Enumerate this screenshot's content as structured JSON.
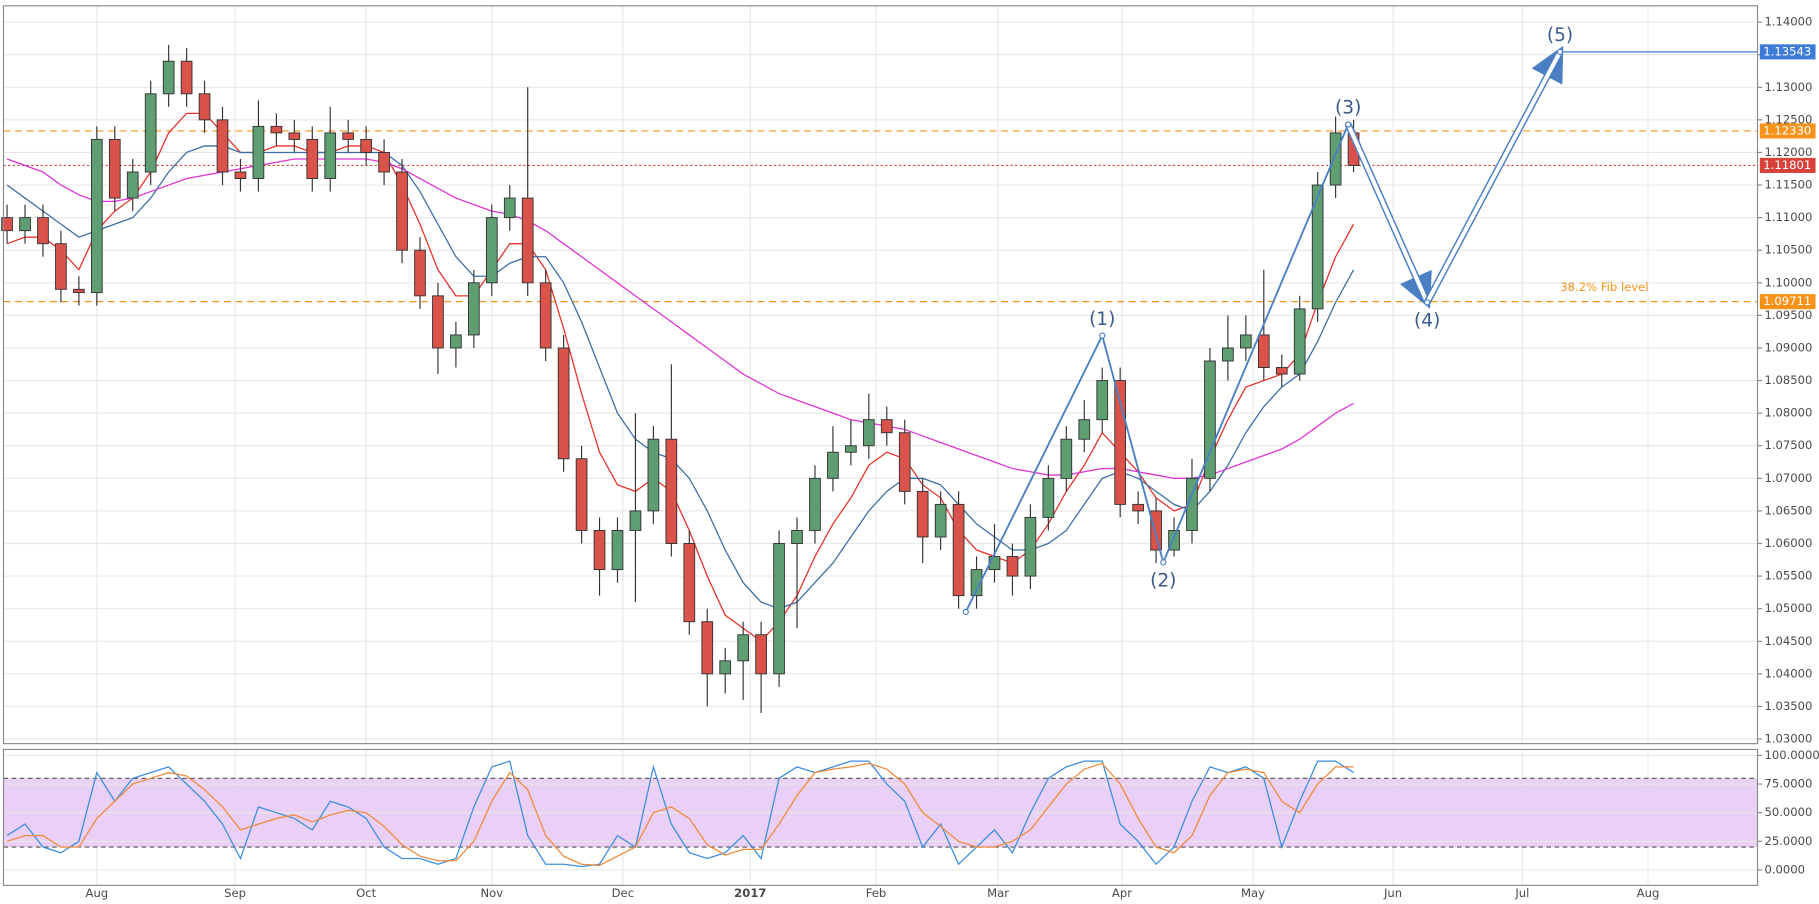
{
  "chart_data": [
    {
      "type": "candlestick",
      "open": [
        1.11,
        1.108,
        1.11,
        1.106,
        1.099,
        1.0985,
        1.122,
        1.113,
        1.117,
        1.129,
        1.134,
        1.129,
        1.125,
        1.117,
        1.116,
        1.124,
        1.123,
        1.122,
        1.116,
        1.123,
        1.122,
        1.12,
        1.117,
        1.105,
        1.098,
        1.09,
        1.092,
        1.1,
        1.11,
        1.113,
        1.1,
        1.09,
        1.073,
        1.062,
        1.056,
        1.062,
        1.065,
        1.076,
        1.06,
        1.048,
        1.04,
        1.042,
        1.046,
        1.04,
        1.06,
        1.062,
        1.07,
        1.074,
        1.075,
        1.079,
        1.077,
        1.068,
        1.061,
        1.066,
        1.052,
        1.056,
        1.058,
        1.055,
        1.064,
        1.07,
        1.076,
        1.079,
        1.085,
        1.066,
        1.065,
        1.059,
        1.062,
        1.07,
        1.088,
        1.09,
        1.092,
        1.087,
        1.086,
        1.096,
        1.115,
        1.123
      ],
      "high": [
        1.112,
        1.112,
        1.112,
        1.108,
        1.101,
        1.124,
        1.124,
        1.119,
        1.131,
        1.1365,
        1.136,
        1.131,
        1.127,
        1.119,
        1.128,
        1.126,
        1.125,
        1.124,
        1.127,
        1.125,
        1.124,
        1.122,
        1.119,
        1.107,
        1.1,
        1.094,
        1.102,
        1.112,
        1.115,
        1.13,
        1.102,
        1.092,
        1.075,
        1.064,
        1.064,
        1.08,
        1.078,
        1.0875,
        1.062,
        1.05,
        1.044,
        1.048,
        1.048,
        1.062,
        1.064,
        1.072,
        1.078,
        1.079,
        1.083,
        1.081,
        1.079,
        1.07,
        1.068,
        1.068,
        1.058,
        1.063,
        1.06,
        1.066,
        1.072,
        1.078,
        1.082,
        1.087,
        1.087,
        1.068,
        1.067,
        1.064,
        1.073,
        1.09,
        1.095,
        1.095,
        1.102,
        1.089,
        1.098,
        1.117,
        1.1255,
        1.125
      ],
      "low": [
        1.106,
        1.106,
        1.104,
        1.097,
        1.0965,
        1.0965,
        1.111,
        1.111,
        1.115,
        1.127,
        1.127,
        1.123,
        1.115,
        1.114,
        1.114,
        1.121,
        1.12,
        1.114,
        1.114,
        1.12,
        1.118,
        1.115,
        1.103,
        1.096,
        1.086,
        1.087,
        1.09,
        1.098,
        1.108,
        1.098,
        1.088,
        1.071,
        1.06,
        1.052,
        1.054,
        1.051,
        1.063,
        1.058,
        1.046,
        1.035,
        1.037,
        1.036,
        1.034,
        1.038,
        1.047,
        1.06,
        1.068,
        1.072,
        1.073,
        1.075,
        1.066,
        1.057,
        1.059,
        1.05,
        1.05,
        1.054,
        1.052,
        1.053,
        1.062,
        1.068,
        1.074,
        1.077,
        1.064,
        1.063,
        1.057,
        1.058,
        1.06,
        1.068,
        1.085,
        1.088,
        1.085,
        1.084,
        1.085,
        1.094,
        1.113,
        1.117
      ],
      "close": [
        1.108,
        1.11,
        1.106,
        1.099,
        1.0985,
        1.122,
        1.113,
        1.117,
        1.129,
        1.134,
        1.129,
        1.125,
        1.117,
        1.116,
        1.124,
        1.123,
        1.122,
        1.116,
        1.123,
        1.122,
        1.12,
        1.117,
        1.105,
        1.098,
        1.09,
        1.092,
        1.1,
        1.11,
        1.113,
        1.1,
        1.09,
        1.073,
        1.062,
        1.056,
        1.062,
        1.065,
        1.076,
        1.06,
        1.048,
        1.04,
        1.042,
        1.046,
        1.04,
        1.06,
        1.062,
        1.07,
        1.074,
        1.075,
        1.079,
        1.077,
        1.068,
        1.061,
        1.066,
        1.052,
        1.056,
        1.058,
        1.055,
        1.064,
        1.07,
        1.076,
        1.079,
        1.085,
        1.066,
        1.065,
        1.059,
        1.062,
        1.07,
        1.088,
        1.09,
        1.092,
        1.087,
        1.086,
        1.096,
        1.115,
        1.123,
        1.118
      ],
      "up_color": "#5e9e72",
      "down_color": "#d9534a",
      "lines": [
        {
          "color": "#e8312a",
          "values": [
            1.106,
            1.107,
            1.107,
            1.105,
            1.102,
            1.108,
            1.111,
            1.113,
            1.117,
            1.123,
            1.126,
            1.126,
            1.123,
            1.12,
            1.12,
            1.121,
            1.121,
            1.12,
            1.12,
            1.121,
            1.121,
            1.12,
            1.115,
            1.109,
            1.102,
            1.098,
            1.098,
            1.102,
            1.106,
            1.106,
            1.102,
            1.093,
            1.083,
            1.074,
            1.069,
            1.068,
            1.07,
            1.068,
            1.062,
            1.055,
            1.049,
            1.047,
            1.045,
            1.048,
            1.052,
            1.058,
            1.063,
            1.067,
            1.072,
            1.074,
            1.073,
            1.069,
            1.067,
            1.062,
            1.059,
            1.058,
            1.057,
            1.059,
            1.063,
            1.068,
            1.072,
            1.077,
            1.074,
            1.071,
            1.067,
            1.065,
            1.066,
            1.073,
            1.079,
            1.084,
            1.085,
            1.086,
            1.089,
            1.097,
            1.104,
            1.109
          ]
        },
        {
          "color": "#3b6ea5",
          "values": [
            1.115,
            1.113,
            1.111,
            1.109,
            1.107,
            1.108,
            1.109,
            1.11,
            1.113,
            1.117,
            1.12,
            1.121,
            1.121,
            1.12,
            1.12,
            1.12,
            1.12,
            1.12,
            1.12,
            1.12,
            1.12,
            1.12,
            1.118,
            1.114,
            1.109,
            1.104,
            1.101,
            1.101,
            1.103,
            1.104,
            1.104,
            1.1,
            1.094,
            1.087,
            1.08,
            1.076,
            1.074,
            1.073,
            1.07,
            1.065,
            1.059,
            1.054,
            1.051,
            1.05,
            1.051,
            1.054,
            1.057,
            1.061,
            1.065,
            1.068,
            1.07,
            1.07,
            1.069,
            1.066,
            1.063,
            1.061,
            1.059,
            1.059,
            1.06,
            1.062,
            1.066,
            1.07,
            1.071,
            1.07,
            1.068,
            1.066,
            1.065,
            1.068,
            1.072,
            1.077,
            1.081,
            1.084,
            1.086,
            1.091,
            1.097,
            1.102
          ]
        },
        {
          "color": "#e033d6",
          "values": [
            1.119,
            1.118,
            1.117,
            1.115,
            1.1135,
            1.1125,
            1.1125,
            1.113,
            1.114,
            1.115,
            1.116,
            1.1165,
            1.117,
            1.1175,
            1.118,
            1.1185,
            1.119,
            1.119,
            1.119,
            1.119,
            1.119,
            1.1185,
            1.1175,
            1.116,
            1.1145,
            1.113,
            1.112,
            1.111,
            1.1105,
            1.1095,
            1.108,
            1.106,
            1.104,
            1.102,
            1.1,
            1.098,
            1.096,
            1.094,
            1.092,
            1.09,
            1.088,
            1.086,
            1.0845,
            1.083,
            1.082,
            1.081,
            1.08,
            1.079,
            1.0785,
            1.078,
            1.0775,
            1.0765,
            1.0755,
            1.0745,
            1.0735,
            1.0725,
            1.0715,
            1.071,
            1.0705,
            1.0705,
            1.071,
            1.0715,
            1.0715,
            1.071,
            1.0705,
            1.07,
            1.07,
            1.0705,
            1.0715,
            1.0725,
            1.0735,
            1.0745,
            1.076,
            1.078,
            1.08,
            1.0815
          ]
        }
      ],
      "wave": {
        "color": "#4a7fc4",
        "x": [
          53.4,
          61.0,
          64.4,
          74.7,
          79.1,
          86.5
        ],
        "y": [
          1.0495,
          1.0919,
          1.0571,
          1.1243,
          1.097,
          1.13543
        ],
        "labels": [
          null,
          "(1)",
          "(2)",
          "(3)",
          "(4)",
          "(5)"
        ]
      },
      "hlines": [
        {
          "value": 1.13543,
          "label": "1.13543",
          "color": "#3d7bd9",
          "style": "solid"
        },
        {
          "value": 1.1233,
          "label": "1.12330",
          "color": "#f7931a",
          "style": "dashed"
        },
        {
          "value": 1.11801,
          "label": "1.11801",
          "color": "#d7433a",
          "style": "dotted"
        },
        {
          "value": 1.09711,
          "label": "1.09711",
          "color": "#f7931a",
          "style": "dashed",
          "note": "38.2% Fib level"
        }
      ],
      "xlim": [
        -0.2,
        97.5
      ],
      "xticks": [
        {
          "value": 5.0,
          "label": "Aug"
        },
        {
          "value": 12.7,
          "label": "Sep"
        },
        {
          "value": 20.0,
          "label": "Oct"
        },
        {
          "value": 27.0,
          "label": "Nov"
        },
        {
          "value": 34.3,
          "label": "Dec"
        },
        {
          "value": 41.4,
          "label": "2017"
        },
        {
          "value": 48.4,
          "label": "Feb"
        },
        {
          "value": 55.2,
          "label": "Mar"
        },
        {
          "value": 62.1,
          "label": "Apr"
        },
        {
          "value": 69.4,
          "label": "May"
        },
        {
          "value": 77.2,
          "label": "Jun"
        },
        {
          "value": 84.4,
          "label": "Jul"
        },
        {
          "value": 91.4,
          "label": "Aug"
        }
      ],
      "ylim": [
        1.02929,
        1.1425
      ],
      "yticks": [
        {
          "value": 1.03,
          "label": "1.03000"
        },
        {
          "value": 1.035,
          "label": "1.03500"
        },
        {
          "value": 1.04,
          "label": "1.04000"
        },
        {
          "value": 1.045,
          "label": "1.04500"
        },
        {
          "value": 1.05,
          "label": "1.05000"
        },
        {
          "value": 1.055,
          "label": "1.05500"
        },
        {
          "value": 1.06,
          "label": "1.06000"
        },
        {
          "value": 1.065,
          "label": "1.06500"
        },
        {
          "value": 1.07,
          "label": "1.07000"
        },
        {
          "value": 1.075,
          "label": "1.07500"
        },
        {
          "value": 1.08,
          "label": "1.08000"
        },
        {
          "value": 1.085,
          "label": "1.08500"
        },
        {
          "value": 1.09,
          "label": "1.09000"
        },
        {
          "value": 1.095,
          "label": "1.09500"
        },
        {
          "value": 1.1,
          "label": "1.10000"
        },
        {
          "value": 1.105,
          "label": "1.10500"
        },
        {
          "value": 1.11,
          "label": "1.11000"
        },
        {
          "value": 1.115,
          "label": "1.11500"
        },
        {
          "value": 1.12,
          "label": "1.12000"
        },
        {
          "value": 1.125,
          "label": "1.12500"
        },
        {
          "value": 1.13,
          "label": "1.13000"
        },
        {
          "value": 1.135,
          "label": "1.13500"
        },
        {
          "value": 1.14,
          "label": "1.14000"
        }
      ],
      "grid": true
    },
    {
      "type": "line",
      "series": [
        {
          "color": "#3d8ee0",
          "values": [
            30,
            40,
            20,
            15,
            25,
            85,
            60,
            80,
            85,
            90,
            75,
            60,
            40,
            10,
            55,
            50,
            45,
            35,
            60,
            55,
            45,
            20,
            10,
            10,
            5,
            10,
            55,
            90,
            95,
            30,
            5,
            5,
            3,
            5,
            30,
            20,
            90,
            40,
            15,
            10,
            15,
            30,
            10,
            80,
            90,
            85,
            90,
            95,
            95,
            75,
            60,
            20,
            40,
            5,
            20,
            35,
            15,
            50,
            80,
            90,
            95,
            95,
            40,
            25,
            5,
            20,
            60,
            90,
            85,
            90,
            80,
            20,
            60,
            95,
            95,
            85
          ]
        },
        {
          "color": "#f08a3c",
          "values": [
            25,
            30,
            30,
            20,
            20,
            45,
            60,
            75,
            80,
            85,
            82,
            70,
            55,
            35,
            40,
            45,
            48,
            42,
            48,
            52,
            50,
            38,
            22,
            12,
            8,
            8,
            25,
            60,
            85,
            70,
            30,
            12,
            5,
            4,
            12,
            20,
            50,
            55,
            45,
            22,
            13,
            18,
            18,
            40,
            65,
            85,
            88,
            90,
            93,
            88,
            75,
            50,
            38,
            25,
            20,
            20,
            25,
            35,
            55,
            75,
            88,
            93,
            75,
            45,
            20,
            15,
            30,
            65,
            85,
            88,
            85,
            60,
            50,
            75,
            90,
            90
          ]
        }
      ],
      "band": [
        20,
        80
      ],
      "band_color": "#e6c8f5",
      "ylim": [
        -13.5,
        105.2
      ],
      "yticks": [
        {
          "value": 0,
          "label": "0.0000"
        },
        {
          "value": 25,
          "label": "25.0000"
        },
        {
          "value": 50,
          "label": "50.0000"
        },
        {
          "value": 75,
          "label": "75.0000"
        },
        {
          "value": 100,
          "label": "100.0000"
        }
      ],
      "grid": true
    }
  ]
}
